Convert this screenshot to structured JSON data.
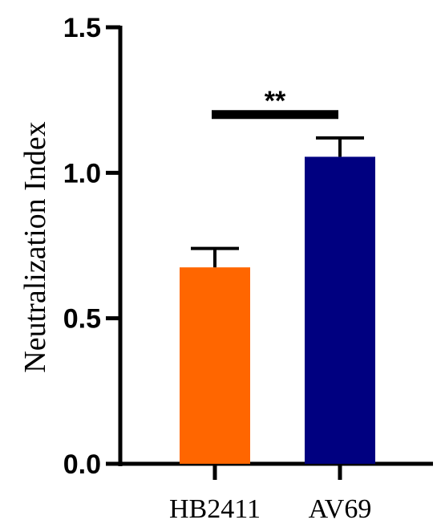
{
  "chart_data": {
    "type": "bar",
    "categories": [
      "HB2411",
      "AV69"
    ],
    "values": [
      0.675,
      1.055
    ],
    "error_upper": [
      0.74,
      1.12
    ],
    "colors": [
      "#FF6600",
      "#000080"
    ],
    "ylabel": "Neutralization Index",
    "ylim": [
      0,
      1.5
    ],
    "yticks": [
      "0.0",
      "0.5",
      "1.0",
      "1.5"
    ],
    "ytick_values": [
      0,
      0.5,
      1.0,
      1.5
    ],
    "significance": {
      "label": "**",
      "from": "HB2411",
      "to": "AV69",
      "y": 1.2
    },
    "grid": false,
    "legend": "none"
  }
}
